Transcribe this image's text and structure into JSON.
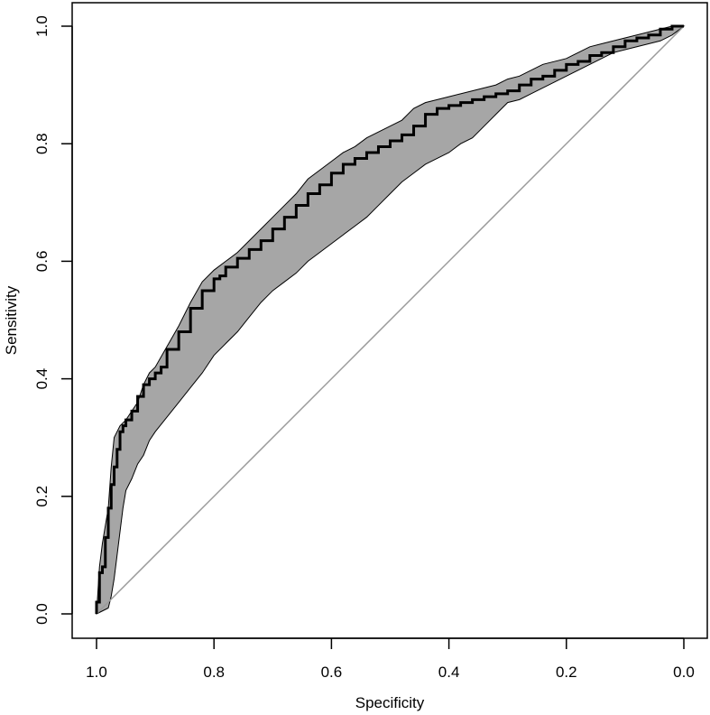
{
  "chart_data": {
    "type": "line",
    "title": "",
    "xlabel": "Specificity",
    "ylabel": "Sensitivity",
    "x_reversed": true,
    "xlim": [
      1.0,
      0.0
    ],
    "ylim": [
      0.0,
      1.0
    ],
    "grid": false,
    "x_ticks": [
      1.0,
      0.8,
      0.6,
      0.4,
      0.2,
      0.0
    ],
    "x_tick_labels": [
      "1.0",
      "0.8",
      "0.6",
      "0.4",
      "0.2",
      "0.0"
    ],
    "y_ticks": [
      0.0,
      0.2,
      0.4,
      0.6,
      0.8,
      1.0
    ],
    "y_tick_labels": [
      "0.0",
      "0.2",
      "0.4",
      "0.6",
      "0.8",
      "1.0"
    ],
    "colors": {
      "roc": "#000000",
      "ci_band": "#a6a6a6",
      "diagonal": "#9a9a9a"
    },
    "roc_curve": {
      "specificity": [
        1.0,
        0.995,
        0.99,
        0.985,
        0.98,
        0.975,
        0.97,
        0.965,
        0.96,
        0.955,
        0.95,
        0.94,
        0.93,
        0.92,
        0.91,
        0.9,
        0.89,
        0.88,
        0.86,
        0.84,
        0.82,
        0.8,
        0.79,
        0.78,
        0.76,
        0.74,
        0.72,
        0.7,
        0.68,
        0.66,
        0.64,
        0.62,
        0.6,
        0.58,
        0.56,
        0.54,
        0.52,
        0.5,
        0.48,
        0.46,
        0.44,
        0.42,
        0.4,
        0.38,
        0.36,
        0.34,
        0.32,
        0.3,
        0.28,
        0.26,
        0.24,
        0.22,
        0.2,
        0.18,
        0.16,
        0.14,
        0.12,
        0.1,
        0.08,
        0.06,
        0.04,
        0.02,
        0.0
      ],
      "sensitivity": [
        0.0,
        0.02,
        0.07,
        0.08,
        0.13,
        0.18,
        0.22,
        0.25,
        0.28,
        0.31,
        0.32,
        0.33,
        0.345,
        0.37,
        0.39,
        0.4,
        0.41,
        0.42,
        0.45,
        0.48,
        0.52,
        0.55,
        0.57,
        0.575,
        0.59,
        0.605,
        0.62,
        0.635,
        0.655,
        0.675,
        0.695,
        0.715,
        0.73,
        0.75,
        0.765,
        0.775,
        0.785,
        0.795,
        0.805,
        0.815,
        0.83,
        0.85,
        0.86,
        0.865,
        0.87,
        0.875,
        0.88,
        0.885,
        0.89,
        0.9,
        0.91,
        0.915,
        0.925,
        0.935,
        0.94,
        0.95,
        0.955,
        0.965,
        0.975,
        0.98,
        0.985,
        0.995,
        1.0
      ]
    },
    "ci_upper": {
      "specificity": [
        1.0,
        0.995,
        0.99,
        0.98,
        0.975,
        0.97,
        0.96,
        0.95,
        0.94,
        0.93,
        0.92,
        0.91,
        0.9,
        0.88,
        0.86,
        0.84,
        0.82,
        0.8,
        0.78,
        0.76,
        0.74,
        0.72,
        0.7,
        0.68,
        0.66,
        0.64,
        0.62,
        0.6,
        0.58,
        0.56,
        0.54,
        0.52,
        0.5,
        0.48,
        0.46,
        0.44,
        0.42,
        0.4,
        0.38,
        0.36,
        0.34,
        0.32,
        0.3,
        0.28,
        0.26,
        0.24,
        0.22,
        0.2,
        0.18,
        0.16,
        0.14,
        0.12,
        0.1,
        0.08,
        0.06,
        0.04,
        0.02,
        0.0
      ],
      "sensitivity": [
        0.0,
        0.08,
        0.12,
        0.18,
        0.25,
        0.3,
        0.32,
        0.33,
        0.345,
        0.36,
        0.39,
        0.41,
        0.42,
        0.455,
        0.49,
        0.53,
        0.565,
        0.585,
        0.6,
        0.615,
        0.635,
        0.655,
        0.675,
        0.695,
        0.715,
        0.74,
        0.755,
        0.77,
        0.785,
        0.795,
        0.81,
        0.82,
        0.83,
        0.84,
        0.86,
        0.87,
        0.875,
        0.88,
        0.885,
        0.89,
        0.895,
        0.9,
        0.91,
        0.915,
        0.925,
        0.935,
        0.94,
        0.945,
        0.955,
        0.965,
        0.97,
        0.975,
        0.98,
        0.985,
        0.99,
        0.995,
        1.0,
        1.0
      ]
    },
    "ci_lower": {
      "specificity": [
        1.0,
        0.99,
        0.98,
        0.975,
        0.97,
        0.965,
        0.96,
        0.955,
        0.95,
        0.94,
        0.93,
        0.92,
        0.91,
        0.9,
        0.88,
        0.86,
        0.84,
        0.82,
        0.8,
        0.78,
        0.76,
        0.74,
        0.72,
        0.7,
        0.68,
        0.66,
        0.64,
        0.62,
        0.6,
        0.58,
        0.56,
        0.54,
        0.52,
        0.5,
        0.48,
        0.46,
        0.44,
        0.42,
        0.4,
        0.38,
        0.36,
        0.34,
        0.32,
        0.3,
        0.28,
        0.26,
        0.24,
        0.22,
        0.2,
        0.18,
        0.16,
        0.14,
        0.12,
        0.1,
        0.08,
        0.06,
        0.04,
        0.02,
        0.0
      ],
      "sensitivity": [
        0.0,
        0.005,
        0.01,
        0.03,
        0.06,
        0.1,
        0.14,
        0.18,
        0.21,
        0.23,
        0.255,
        0.27,
        0.295,
        0.31,
        0.335,
        0.36,
        0.385,
        0.41,
        0.44,
        0.46,
        0.48,
        0.505,
        0.53,
        0.55,
        0.565,
        0.58,
        0.6,
        0.615,
        0.63,
        0.645,
        0.66,
        0.675,
        0.695,
        0.715,
        0.735,
        0.75,
        0.765,
        0.775,
        0.785,
        0.8,
        0.81,
        0.83,
        0.85,
        0.87,
        0.875,
        0.885,
        0.895,
        0.905,
        0.915,
        0.925,
        0.935,
        0.945,
        0.955,
        0.96,
        0.965,
        0.97,
        0.975,
        0.985,
        1.0
      ]
    }
  }
}
